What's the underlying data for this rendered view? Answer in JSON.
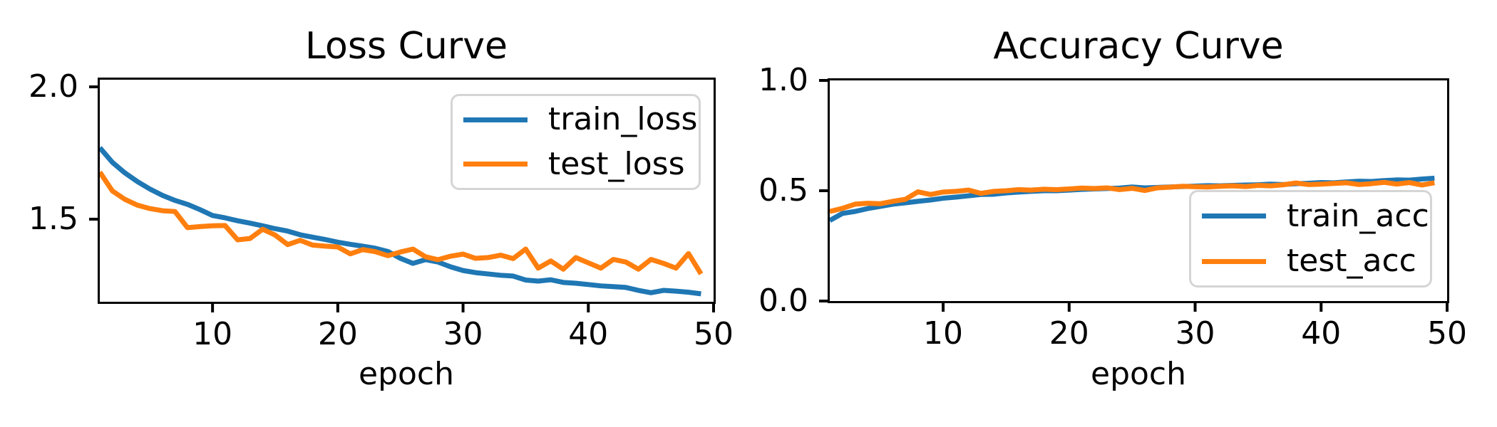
{
  "style": {
    "background": "#ffffff",
    "axis_color": "#000000",
    "text_color": "#000000",
    "legend_border_color": "#d5d5d5",
    "train_color": "#1f77b4",
    "test_color": "#ff7f0e"
  },
  "chart_data": [
    {
      "type": "line",
      "title": "Loss Curve",
      "xlabel": "epoch",
      "grid": false,
      "legend_loc": "upper right",
      "xlim": [
        1,
        50
      ],
      "ylim": [
        1.188,
        2.027
      ],
      "xticks": [
        10,
        20,
        30,
        40,
        50
      ],
      "xtick_labels": [
        "10",
        "20",
        "30",
        "40",
        "50"
      ],
      "yticks": [
        2.0,
        1.5
      ],
      "ytick_labels": [
        "2.0",
        "1.5"
      ],
      "x": [
        1,
        2,
        3,
        4,
        5,
        6,
        7,
        8,
        9,
        10,
        11,
        12,
        13,
        14,
        15,
        16,
        17,
        18,
        19,
        20,
        21,
        22,
        23,
        24,
        25,
        26,
        27,
        28,
        29,
        30,
        31,
        32,
        33,
        34,
        35,
        36,
        37,
        38,
        39,
        40,
        41,
        42,
        43,
        44,
        45,
        46,
        47,
        48,
        49
      ],
      "series": [
        {
          "name": "train_loss",
          "color": "#1f77b4",
          "values": [
            1.77,
            1.715,
            1.675,
            1.642,
            1.614,
            1.59,
            1.571,
            1.556,
            1.536,
            1.514,
            1.505,
            1.494,
            1.485,
            1.475,
            1.464,
            1.455,
            1.441,
            1.432,
            1.423,
            1.413,
            1.405,
            1.398,
            1.39,
            1.378,
            1.352,
            1.333,
            1.347,
            1.338,
            1.32,
            1.306,
            1.298,
            1.293,
            1.288,
            1.285,
            1.27,
            1.266,
            1.271,
            1.261,
            1.258,
            1.253,
            1.248,
            1.245,
            1.242,
            1.231,
            1.222,
            1.231,
            1.228,
            1.224,
            1.218
          ]
        },
        {
          "name": "test_loss",
          "color": "#ff7f0e",
          "values": [
            1.678,
            1.607,
            1.575,
            1.553,
            1.54,
            1.532,
            1.529,
            1.468,
            1.472,
            1.475,
            1.476,
            1.422,
            1.427,
            1.462,
            1.44,
            1.404,
            1.42,
            1.402,
            1.398,
            1.395,
            1.369,
            1.385,
            1.377,
            1.362,
            1.376,
            1.387,
            1.358,
            1.347,
            1.36,
            1.368,
            1.352,
            1.355,
            1.364,
            1.351,
            1.387,
            1.315,
            1.342,
            1.311,
            1.355,
            1.335,
            1.315,
            1.348,
            1.338,
            1.311,
            1.348,
            1.333,
            1.315,
            1.37,
            1.293
          ]
        }
      ]
    },
    {
      "type": "line",
      "title": "Accuracy Curve",
      "xlabel": "epoch",
      "grid": false,
      "legend_loc": "lower right",
      "xlim": [
        1,
        50
      ],
      "ylim": [
        0.0,
        1.0
      ],
      "xticks": [
        10,
        20,
        30,
        40,
        50
      ],
      "xtick_labels": [
        "10",
        "20",
        "30",
        "40",
        "50"
      ],
      "yticks": [
        1.0,
        0.5,
        0.0
      ],
      "ytick_labels": [
        "1.0",
        "0.5",
        "0.0"
      ],
      "x": [
        1,
        2,
        3,
        4,
        5,
        6,
        7,
        8,
        9,
        10,
        11,
        12,
        13,
        14,
        15,
        16,
        17,
        18,
        19,
        20,
        21,
        22,
        23,
        24,
        25,
        26,
        27,
        28,
        29,
        30,
        31,
        32,
        33,
        34,
        35,
        36,
        37,
        38,
        39,
        40,
        41,
        42,
        43,
        44,
        45,
        46,
        47,
        48,
        49
      ],
      "series": [
        {
          "name": "train_acc",
          "color": "#1f77b4",
          "values": [
            0.365,
            0.397,
            0.406,
            0.419,
            0.429,
            0.439,
            0.445,
            0.452,
            0.458,
            0.466,
            0.471,
            0.477,
            0.483,
            0.484,
            0.49,
            0.494,
            0.497,
            0.5,
            0.5,
            0.503,
            0.506,
            0.508,
            0.51,
            0.512,
            0.517,
            0.513,
            0.515,
            0.517,
            0.519,
            0.521,
            0.523,
            0.522,
            0.524,
            0.526,
            0.527,
            0.53,
            0.528,
            0.532,
            0.534,
            0.537,
            0.536,
            0.54,
            0.543,
            0.542,
            0.546,
            0.549,
            0.548,
            0.553,
            0.557
          ]
        },
        {
          "name": "test_acc",
          "color": "#ff7f0e",
          "values": [
            0.406,
            0.42,
            0.439,
            0.443,
            0.441,
            0.452,
            0.461,
            0.495,
            0.483,
            0.494,
            0.497,
            0.503,
            0.488,
            0.497,
            0.5,
            0.505,
            0.503,
            0.507,
            0.505,
            0.508,
            0.512,
            0.51,
            0.513,
            0.505,
            0.511,
            0.501,
            0.513,
            0.516,
            0.52,
            0.518,
            0.517,
            0.52,
            0.522,
            0.519,
            0.524,
            0.522,
            0.527,
            0.535,
            0.528,
            0.53,
            0.533,
            0.536,
            0.528,
            0.532,
            0.538,
            0.53,
            0.537,
            0.526,
            0.536
          ]
        }
      ]
    }
  ]
}
